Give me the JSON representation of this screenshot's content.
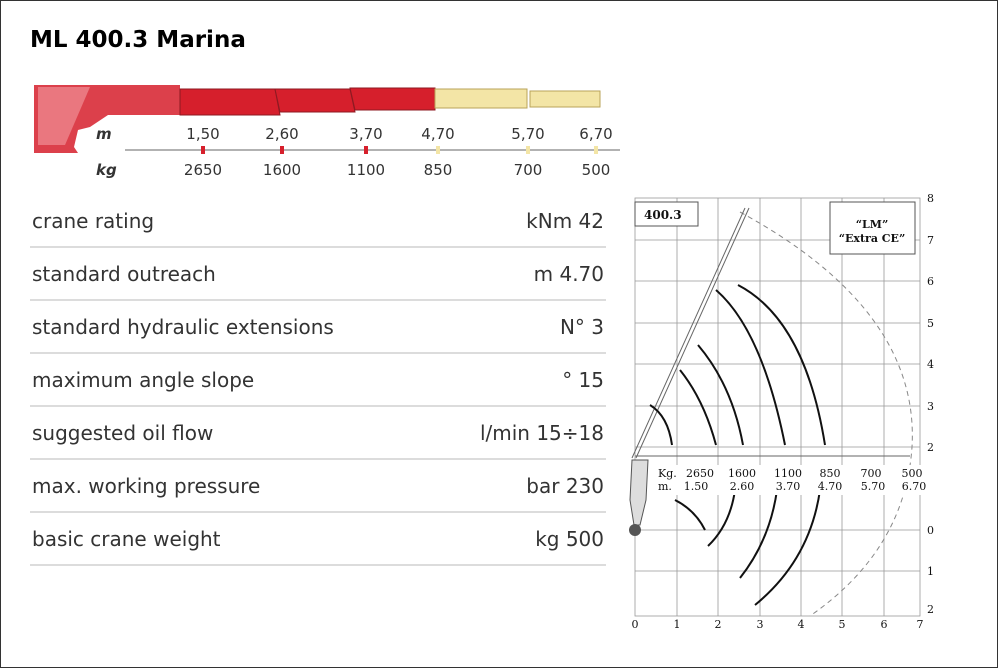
{
  "title": "ML 400.3 Marina",
  "boom": {
    "m_label": "m",
    "kg_label": "kg",
    "outreach": [
      "1,50",
      "2,60",
      "3,70",
      "4,70",
      "5,70",
      "6,70"
    ],
    "loads": [
      "2650",
      "1600",
      "1100",
      "850",
      "700",
      "500"
    ],
    "colors": {
      "hydraulic": "#d61f2c",
      "manual": "#f3e5a6",
      "axis": "#999999"
    }
  },
  "specs": [
    {
      "label": "crane rating",
      "value": "kNm 42"
    },
    {
      "label": "standard outreach",
      "value": "m 4.70"
    },
    {
      "label": "standard hydraulic extensions",
      "value": "N° 3"
    },
    {
      "label": "maximum angle slope",
      "value": "° 15"
    },
    {
      "label": "suggested oil flow",
      "value": "l/min 15÷18"
    },
    {
      "label": "max. working pressure",
      "value": "bar 230"
    },
    {
      "label": "basic crane weight",
      "value": "kg 500"
    }
  ],
  "diagram": {
    "model_box": "400.3",
    "note_line1": "“LM”",
    "note_line2": "“Extra CE”",
    "kg_label": "Kg.",
    "m_label": "m.",
    "loads": [
      "2650",
      "1600",
      "1100",
      "850",
      "700",
      "500"
    ],
    "reaches": [
      "1.50",
      "2.60",
      "3.70",
      "4.70",
      "5.70",
      "6.70"
    ],
    "x_ticks": [
      "0",
      "1",
      "2",
      "3",
      "4",
      "5",
      "6",
      "7"
    ],
    "y_ticks_upper": [
      "8",
      "7",
      "6",
      "5",
      "4",
      "3",
      "2"
    ],
    "y_ticks_lower": [
      "0",
      "1",
      "2"
    ]
  }
}
